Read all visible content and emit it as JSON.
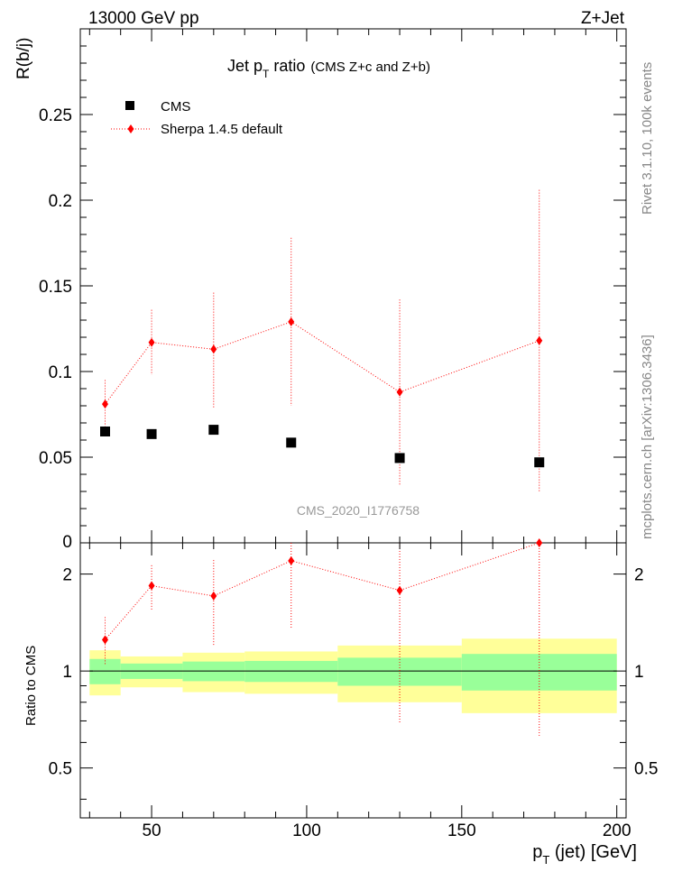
{
  "header": {
    "left": "13000 GeV pp",
    "right": "Z+Jet"
  },
  "side": {
    "rivet": "Rivet 3.1.10,  100k events",
    "mcplots": "mcplots.cern.ch [arXiv:1306.3436]"
  },
  "title": {
    "main": "Jet p",
    "sub": "T",
    "rest": " ratio",
    "small": "(CMS  Z+c and Z+b)"
  },
  "watermark": "CMS_2020_I1776758",
  "colors": {
    "mc": "#ff0000",
    "data": "#000000",
    "band_inner": "#99ff99",
    "band_outer": "#ffff99"
  },
  "chart_data": [
    {
      "type": "scatter",
      "panel": "main",
      "ylabel": "R(b/j)",
      "xlim": [
        27,
        203
      ],
      "ylim": [
        0,
        0.3
      ],
      "yticks": [
        0.05,
        0.1,
        0.15,
        0.2,
        0.25
      ],
      "ytick_labels": [
        "0.05",
        "0.1",
        "0.15",
        "0.2",
        "0.25"
      ],
      "bottom_tick_label": "0",
      "legend": {
        "placement": "top-left"
      },
      "series": [
        {
          "name": "CMS",
          "marker": "square",
          "x": [
            35,
            50,
            70,
            95,
            130,
            175
          ],
          "y": [
            0.065,
            0.0635,
            0.066,
            0.0585,
            0.0495,
            0.047
          ],
          "xerr_lo": [
            5,
            10,
            10,
            15,
            20,
            25
          ],
          "xerr_hi": [
            5,
            10,
            10,
            15,
            20,
            25
          ]
        },
        {
          "name": "Sherpa 1.4.5 default",
          "marker": "diamond",
          "x": [
            35,
            50,
            70,
            95,
            130,
            175
          ],
          "y": [
            0.081,
            0.117,
            0.113,
            0.129,
            0.088,
            0.118
          ],
          "yerr_lo": [
            0.013,
            0.019,
            0.034,
            0.049,
            0.054,
            0.088
          ],
          "yerr_hi": [
            0.014,
            0.019,
            0.033,
            0.049,
            0.054,
            0.088
          ]
        }
      ]
    },
    {
      "type": "scatter",
      "panel": "ratio",
      "ylabel": "Ratio to CMS",
      "xlabel_main": "p",
      "xlabel_sub": "T",
      "xlabel_rest": " (jet) [GeV]",
      "xlim": [
        27,
        203
      ],
      "ylim": [
        0.35,
        2.5
      ],
      "log_y": true,
      "xticks": [
        50,
        100,
        150,
        200
      ],
      "xtick_labels": [
        "50",
        "100",
        "150",
        "200"
      ],
      "yticks": [
        0.5,
        1,
        2
      ],
      "ytick_labels": [
        "0.5",
        "1",
        "2"
      ],
      "bands": [
        {
          "xlo": 30,
          "xhi": 40,
          "inner_lo": 0.91,
          "inner_hi": 1.09,
          "outer_lo": 0.84,
          "outer_hi": 1.16
        },
        {
          "xlo": 40,
          "xhi": 60,
          "inner_lo": 0.945,
          "inner_hi": 1.055,
          "outer_lo": 0.89,
          "outer_hi": 1.11
        },
        {
          "xlo": 60,
          "xhi": 80,
          "inner_lo": 0.93,
          "inner_hi": 1.07,
          "outer_lo": 0.86,
          "outer_hi": 1.14
        },
        {
          "xlo": 80,
          "xhi": 110,
          "inner_lo": 0.925,
          "inner_hi": 1.075,
          "outer_lo": 0.85,
          "outer_hi": 1.15
        },
        {
          "xlo": 110,
          "xhi": 150,
          "inner_lo": 0.9,
          "inner_hi": 1.1,
          "outer_lo": 0.8,
          "outer_hi": 1.2
        },
        {
          "xlo": 150,
          "xhi": 200,
          "inner_lo": 0.87,
          "inner_hi": 1.13,
          "outer_lo": 0.74,
          "outer_hi": 1.26
        }
      ],
      "series": [
        {
          "name": "Sherpa 1.4.5 default",
          "marker": "diamond",
          "x": [
            35,
            50,
            70,
            95,
            130,
            175
          ],
          "y": [
            1.25,
            1.84,
            1.71,
            2.2,
            1.78,
            2.5
          ],
          "yerr_lo": [
            0.2,
            0.29,
            0.51,
            0.84,
            1.09,
            1.87
          ],
          "yerr_hi": [
            0.22,
            0.29,
            0.5,
            0.84,
            1.09,
            1.87
          ]
        }
      ]
    }
  ]
}
